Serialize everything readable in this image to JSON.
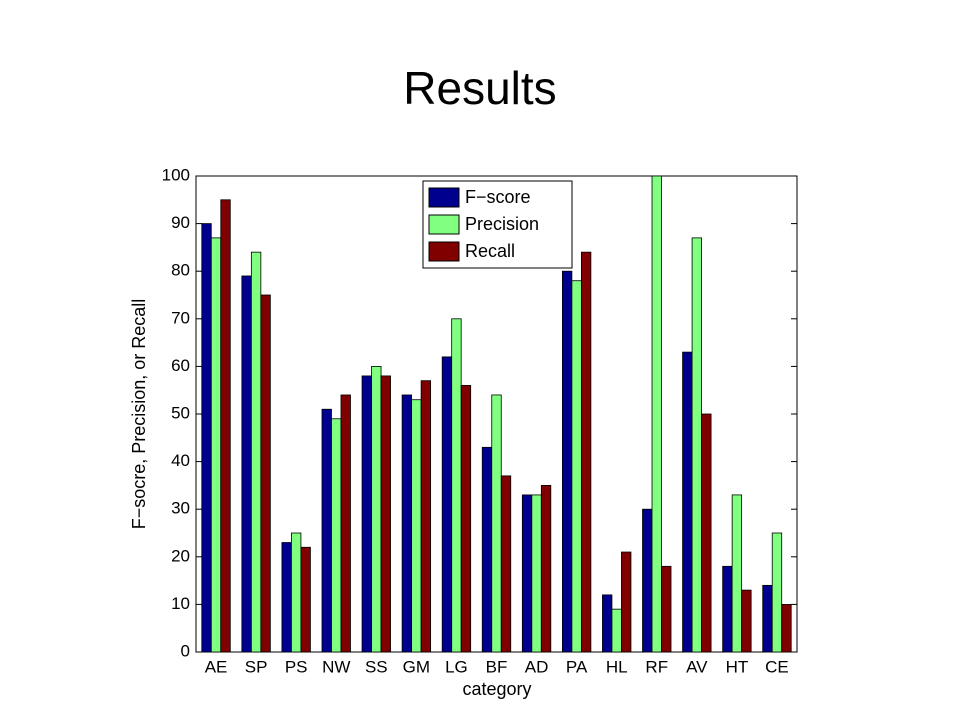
{
  "chart_data": {
    "type": "bar",
    "title": "Results",
    "x_label": "category",
    "y_label": "F−socre, Precision, or Recall",
    "categories": [
      "AE",
      "SP",
      "PS",
      "NW",
      "SS",
      "GM",
      "LG",
      "BF",
      "AD",
      "PA",
      "HL",
      "RF",
      "AV",
      "HT",
      "CE"
    ],
    "series": [
      {
        "name": "F−score",
        "color": "#00008f",
        "values": [
          90,
          79,
          23,
          51,
          58,
          54,
          62,
          43,
          33,
          80,
          12,
          30,
          63,
          18,
          14
        ]
      },
      {
        "name": "Precision",
        "color": "#80ff80",
        "values": [
          87,
          84,
          25,
          49,
          60,
          53,
          70,
          54,
          33,
          78,
          9,
          100,
          87,
          33,
          25
        ]
      },
      {
        "name": "Recall",
        "color": "#800000",
        "values": [
          95,
          75,
          22,
          54,
          58,
          57,
          56,
          37,
          35,
          84,
          21,
          18,
          50,
          13,
          10
        ]
      }
    ],
    "ylim": [
      0,
      100
    ],
    "yticks": [
      0,
      10,
      20,
      30,
      40,
      50,
      60,
      70,
      80,
      90,
      100
    ],
    "grid": false,
    "legend": "top"
  }
}
